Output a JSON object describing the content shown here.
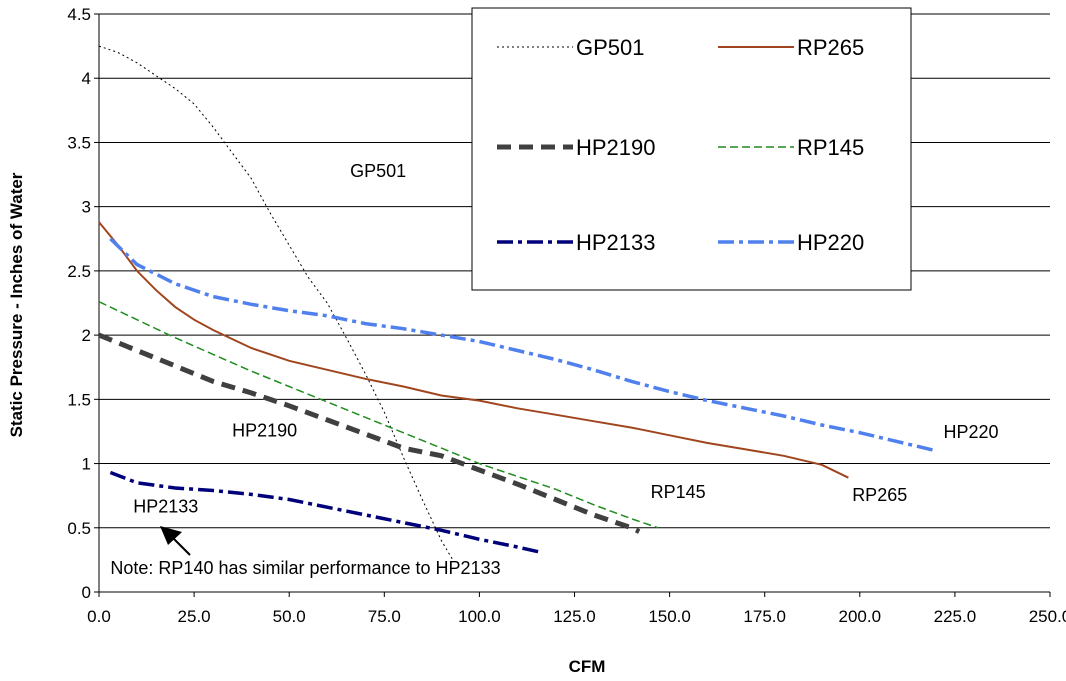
{
  "chart_data": {
    "type": "line",
    "title": "",
    "xlabel": "CFM",
    "ylabel": "Static Pressure  - Inches of Water",
    "xlim": [
      0,
      250
    ],
    "ylim": [
      0,
      4.5
    ],
    "xticks": [
      "0.0",
      "25.0",
      "50.0",
      "75.0",
      "100.0",
      "125.0",
      "150.0",
      "175.0",
      "200.0",
      "225.0",
      "250.0"
    ],
    "yticks": [
      "0",
      "0.5",
      "1",
      "1.5",
      "2",
      "2.5",
      "3",
      "3.5",
      "4",
      "4.5"
    ],
    "grid": "horizontal",
    "legend_position": "top-right",
    "series": [
      {
        "name": "GP501",
        "color": "#000000",
        "style": "dotted",
        "x": [
          0,
          5,
          10,
          15,
          20,
          25,
          30,
          35,
          40,
          45,
          50,
          55,
          60,
          65,
          70,
          75,
          80,
          85,
          90,
          93
        ],
        "y": [
          4.25,
          4.2,
          4.12,
          4.02,
          3.92,
          3.8,
          3.62,
          3.42,
          3.22,
          2.95,
          2.7,
          2.45,
          2.25,
          1.98,
          1.7,
          1.4,
          1.05,
          0.72,
          0.4,
          0.25
        ]
      },
      {
        "name": "RP265",
        "color": "#a0461e",
        "style": "solid",
        "x": [
          0,
          5,
          10,
          15,
          20,
          25,
          30,
          40,
          50,
          60,
          70,
          80,
          90,
          100,
          110,
          120,
          130,
          140,
          150,
          160,
          170,
          180,
          190,
          197
        ],
        "y": [
          2.88,
          2.7,
          2.5,
          2.35,
          2.22,
          2.12,
          2.04,
          1.9,
          1.8,
          1.73,
          1.66,
          1.6,
          1.53,
          1.49,
          1.43,
          1.38,
          1.33,
          1.28,
          1.22,
          1.16,
          1.11,
          1.06,
          0.99,
          0.89
        ]
      },
      {
        "name": "HP2190",
        "color": "#404040",
        "style": "thick-dash",
        "x": [
          0,
          10,
          20,
          30,
          40,
          50,
          60,
          70,
          80,
          90,
          100,
          110,
          120,
          130,
          140,
          142
        ],
        "y": [
          2.0,
          1.88,
          1.76,
          1.64,
          1.55,
          1.45,
          1.34,
          1.23,
          1.12,
          1.06,
          0.95,
          0.84,
          0.72,
          0.6,
          0.5,
          0.47
        ]
      },
      {
        "name": "RP145",
        "color": "#1e8c1e",
        "style": "dashed",
        "x": [
          0,
          10,
          20,
          30,
          40,
          50,
          60,
          70,
          80,
          90,
          100,
          110,
          120,
          130,
          140,
          147
        ],
        "y": [
          2.26,
          2.12,
          1.98,
          1.85,
          1.72,
          1.6,
          1.48,
          1.36,
          1.24,
          1.12,
          1.0,
          0.9,
          0.8,
          0.68,
          0.57,
          0.5
        ]
      },
      {
        "name": "HP2133",
        "color": "#00007a",
        "style": "dash-dot",
        "x": [
          3,
          10,
          20,
          30,
          40,
          50,
          60,
          70,
          80,
          90,
          100,
          110,
          116
        ],
        "y": [
          0.93,
          0.85,
          0.81,
          0.79,
          0.76,
          0.72,
          0.66,
          0.6,
          0.54,
          0.48,
          0.41,
          0.35,
          0.31
        ]
      },
      {
        "name": "HP220",
        "color": "#4f80ee",
        "style": "dash-dot",
        "x": [
          3,
          10,
          20,
          30,
          40,
          50,
          60,
          70,
          80,
          90,
          100,
          110,
          120,
          130,
          140,
          150,
          160,
          170,
          180,
          190,
          200,
          210,
          220
        ],
        "y": [
          2.75,
          2.55,
          2.4,
          2.3,
          2.24,
          2.19,
          2.15,
          2.09,
          2.05,
          2.0,
          1.95,
          1.88,
          1.81,
          1.73,
          1.64,
          1.56,
          1.49,
          1.43,
          1.37,
          1.3,
          1.24,
          1.17,
          1.1
        ]
      }
    ],
    "annotations": [
      {
        "text": "GP501",
        "x": 66,
        "y": 3.23
      },
      {
        "text": "HP2190",
        "x": 35,
        "y": 1.21
      },
      {
        "text": "HP2133",
        "x": 9,
        "y": 0.62
      },
      {
        "text": "RP145",
        "x": 145,
        "y": 0.73
      },
      {
        "text": "RP265",
        "x": 198,
        "y": 0.71
      },
      {
        "text": "HP220",
        "x": 222,
        "y": 1.2
      },
      {
        "text": "Note: RP140 has similar performance to HP2133",
        "x": 3,
        "y": 0.14,
        "arrow": true
      }
    ]
  }
}
